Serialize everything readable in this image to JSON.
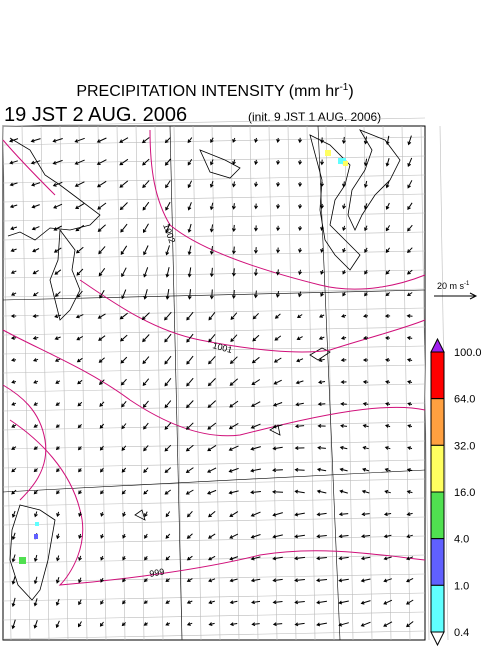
{
  "header": {
    "title": "PRECIPITATION INTENSITY (mm hr",
    "title_superscript": "-1",
    "title_close": ")",
    "valid_time": "19 JST 2 AUG. 2006",
    "init_time": "(init. 9 JST 1 AUG. 2006)"
  },
  "reference_vector": {
    "label": "20 m s",
    "superscript": "-1"
  },
  "contour_labels": [
    "1002",
    "1001",
    "999"
  ],
  "colorbar": {
    "labels": [
      "100.0",
      "64.0",
      "32.0",
      "16.0",
      "4.0",
      "1.0",
      "0.4"
    ],
    "colors": [
      "#ff0000",
      "#ffa040",
      "#ffff60",
      "#50e050",
      "#6060ff",
      "#60ffff"
    ],
    "over_color": "#a020f0",
    "under_color": "#ffffff"
  }
}
